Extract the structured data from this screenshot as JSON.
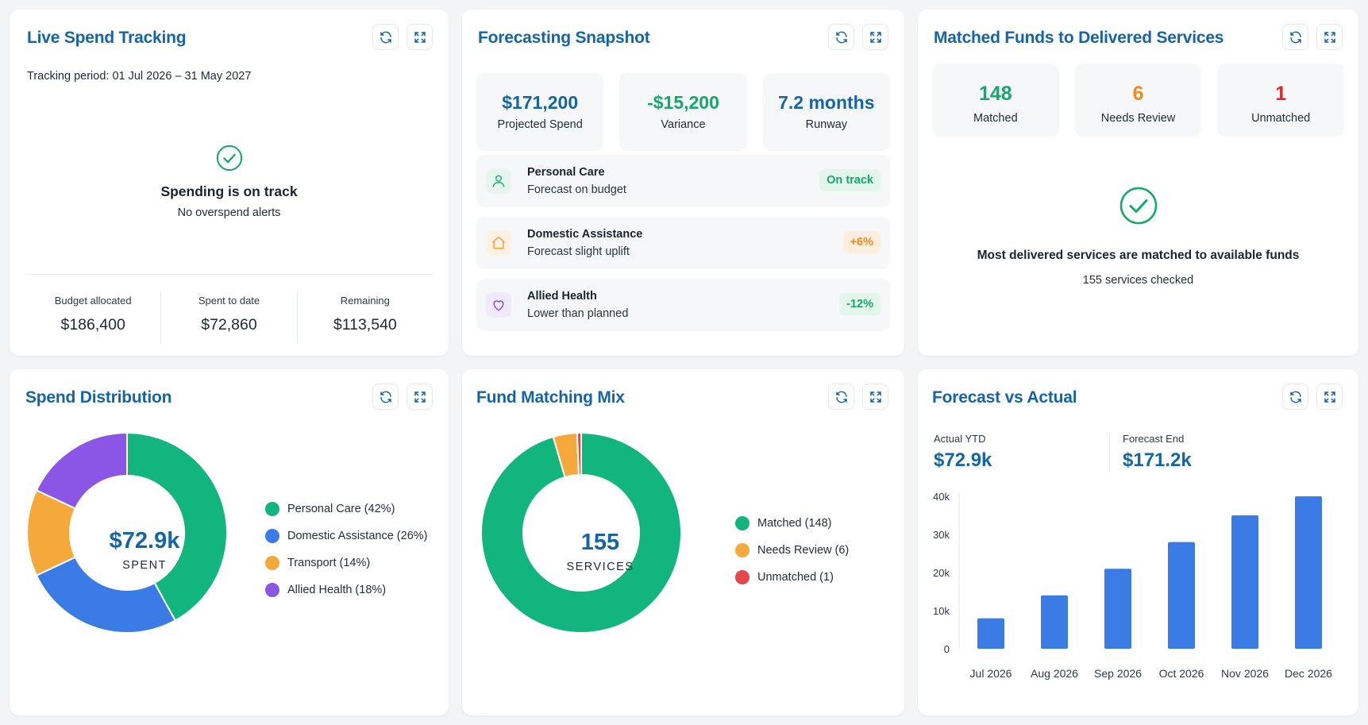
{
  "cards": {
    "live_spend": {
      "title": "Live Spend Tracking",
      "period": "Tracking period: 01 Jul 2026 – 31 May 2027",
      "status_title": "Spending is on track",
      "status_sub": "No overspend alerts",
      "stats": [
        {
          "label": "Budget allocated",
          "value": "$186,400"
        },
        {
          "label": "Spent to date",
          "value": "$72,860"
        },
        {
          "label": "Remaining",
          "value": "$113,540"
        }
      ]
    },
    "forecast_snapshot": {
      "title": "Forecasting Snapshot",
      "kpis": [
        {
          "value": "$171,200",
          "label": "Projected Spend",
          "color": "#1464a8"
        },
        {
          "value": "-$15,200",
          "label": "Variance",
          "color": "#15a86b"
        },
        {
          "value": "7.2 months",
          "label": "Runway",
          "color": "#1464a8"
        }
      ],
      "rows": [
        {
          "title": "Personal Care",
          "sub": "Forecast on budget",
          "badge": "On track",
          "icon": "person-icon",
          "badge_color": "#15a86b",
          "badge_bg": "#e3f6ec",
          "icon_color": "#19b37a"
        },
        {
          "title": "Domestic Assistance",
          "sub": "Forecast slight uplift",
          "badge": "+6%",
          "icon": "home-icon",
          "badge_color": "#f08a1c",
          "badge_bg": "#fdeedd",
          "icon_color": "#f3a13b"
        },
        {
          "title": "Allied Health",
          "sub": "Lower than planned",
          "badge": "-12%",
          "icon": "heart-icon",
          "badge_color": "#15a86b",
          "badge_bg": "#e3f6ec",
          "icon_color": "#8a4fe0"
        }
      ]
    },
    "matched_funds": {
      "title": "Matched Funds to Delivered Services",
      "kpis": [
        {
          "value": "148",
          "label": "Matched",
          "color": "#15a86b"
        },
        {
          "value": "6",
          "label": "Needs Review",
          "color": "#f08a1c"
        },
        {
          "value": "1",
          "label": "Unmatched",
          "color": "#d92b2b"
        }
      ],
      "message": "Most delivered services are matched to available funds",
      "sub": "155 services checked"
    },
    "spend_distribution": {
      "title": "Spend Distribution",
      "center_value": "$72.9k",
      "center_label": "SPENT"
    },
    "fund_matching": {
      "title": "Fund Matching Mix",
      "center_value": "155",
      "center_label": "SERVICES"
    },
    "forecast_vs_actual": {
      "title": "Forecast vs Actual",
      "actual_label": "Actual YTD",
      "actual_value": "$72.9k",
      "forecast_label": "Forecast End",
      "forecast_value": "$171.2k"
    }
  },
  "chart_data": [
    {
      "type": "pie",
      "chart": "Spend Distribution",
      "labels": [
        "Personal Care (42%)",
        "Domestic Assistance (26%)",
        "Transport (14%)",
        "Allied Health (18%)"
      ],
      "values": [
        42,
        26,
        14,
        18
      ],
      "colors": [
        "#12b57e",
        "#3b7be6",
        "#f5a93a",
        "#8b55e6"
      ],
      "legend": "right"
    },
    {
      "type": "pie",
      "chart": "Fund Matching Mix",
      "labels": [
        "Matched (148)",
        "Needs Review (6)",
        "Unmatched (1)"
      ],
      "values": [
        148,
        6,
        1
      ],
      "colors": [
        "#12b57e",
        "#f5a93a",
        "#e5474b"
      ],
      "legend": "right"
    },
    {
      "type": "bar",
      "chart": "Forecast vs Actual",
      "categories": [
        "Jul 2026",
        "Aug 2026",
        "Sep 2026",
        "Oct 2026",
        "Nov 2026",
        "Dec 2026"
      ],
      "values": [
        8000,
        14000,
        21000,
        28000,
        35000,
        40000
      ],
      "ylim": [
        0,
        40000
      ],
      "yticks": [
        "0",
        "10k",
        "20k",
        "30k",
        "40k"
      ],
      "ytick_values": [
        0,
        10000,
        20000,
        30000,
        40000
      ],
      "color": "#3b7be6",
      "grid": false
    }
  ]
}
